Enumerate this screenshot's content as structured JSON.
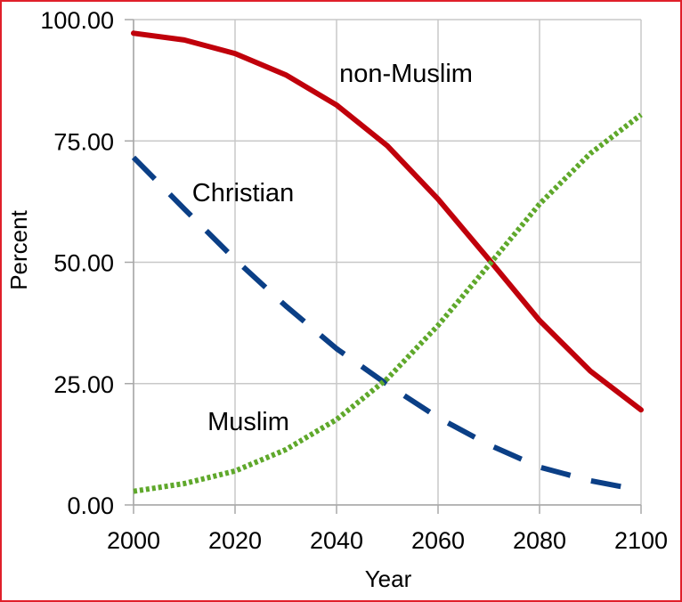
{
  "chart_data": {
    "type": "line",
    "xlabel": "Year",
    "ylabel": "Percent",
    "xlim": [
      2000,
      2100
    ],
    "ylim": [
      0,
      100
    ],
    "x_ticks": [
      "2000",
      "2020",
      "2040",
      "2060",
      "2080",
      "2100"
    ],
    "y_ticks": [
      "0.00",
      "25.00",
      "50.00",
      "75.00",
      "100.00"
    ],
    "grid": true,
    "legend": "none",
    "x": [
      2000,
      2010,
      2020,
      2030,
      2040,
      2050,
      2060,
      2070,
      2080,
      2090,
      2100
    ],
    "series": [
      {
        "name": "non-Muslim",
        "color": "#c0000b",
        "style": "solid",
        "values": [
          97.2,
          95.8,
          93.0,
          88.6,
          82.4,
          74.0,
          63.0,
          50.6,
          38.0,
          27.6,
          19.6
        ]
      },
      {
        "name": "Christian",
        "color": "#0b3f86",
        "style": "dashed",
        "values": [
          71.6,
          61.0,
          50.6,
          41.0,
          32.2,
          24.8,
          18.0,
          12.4,
          7.8,
          5.0,
          3.0
        ]
      },
      {
        "name": "Muslim",
        "color": "#5fa82b",
        "style": "dotted",
        "values": [
          2.8,
          4.4,
          7.0,
          11.4,
          17.6,
          26.0,
          37.0,
          49.4,
          62.0,
          72.4,
          80.4
        ]
      }
    ]
  }
}
